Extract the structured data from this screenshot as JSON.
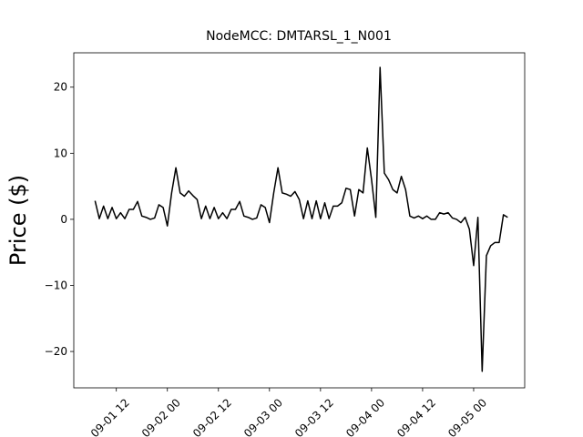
{
  "chart_data": {
    "type": "line",
    "title": "NodeMCC: DMTARSL_1_N001",
    "y_label": "Price ($)",
    "x": [
      "09-01 07",
      "09-01 08",
      "09-01 09",
      "09-01 10",
      "09-01 11",
      "09-01 12",
      "09-01 13",
      "09-01 14",
      "09-01 15",
      "09-01 16",
      "09-01 17",
      "09-01 18",
      "09-01 19",
      "09-01 20",
      "09-01 21",
      "09-01 22",
      "09-01 23",
      "09-02 00",
      "09-02 01",
      "09-02 02",
      "09-02 03",
      "09-02 04",
      "09-02 05",
      "09-02 06",
      "09-02 07",
      "09-02 08",
      "09-02 09",
      "09-02 10",
      "09-02 11",
      "09-02 12",
      "09-02 13",
      "09-02 14",
      "09-02 15",
      "09-02 16",
      "09-02 17",
      "09-02 18",
      "09-02 19",
      "09-02 20",
      "09-02 21",
      "09-02 22",
      "09-02 23",
      "09-03 00",
      "09-03 01",
      "09-03 02",
      "09-03 03",
      "09-03 04",
      "09-03 05",
      "09-03 06",
      "09-03 07",
      "09-03 08",
      "09-03 09",
      "09-03 10",
      "09-03 11",
      "09-03 12",
      "09-03 13",
      "09-03 14",
      "09-03 15",
      "09-03 16",
      "09-03 17",
      "09-03 18",
      "09-03 19",
      "09-03 20",
      "09-03 21",
      "09-03 22",
      "09-03 23",
      "09-04 00",
      "09-04 01",
      "09-04 02",
      "09-04 03",
      "09-04 04",
      "09-04 05",
      "09-04 06",
      "09-04 07",
      "09-04 08",
      "09-04 09",
      "09-04 10",
      "09-04 11",
      "09-04 12",
      "09-04 13",
      "09-04 14",
      "09-04 15",
      "09-04 16",
      "09-04 17",
      "09-04 18",
      "09-04 19",
      "09-04 20",
      "09-04 21",
      "09-04 22",
      "09-04 23",
      "09-05 00",
      "09-05 01",
      "09-05 02",
      "09-05 03",
      "09-05 04",
      "09-05 05",
      "09-05 06",
      "09-05 07",
      "09-05 08"
    ],
    "series": [
      {
        "color": "#000000",
        "values": [
          2.8,
          0.1,
          2.0,
          0.1,
          1.8,
          0.1,
          1.0,
          0.1,
          1.5,
          1.5,
          2.7,
          0.5,
          0.3,
          0,
          0.2,
          2.2,
          1.8,
          -1.0,
          4.0,
          7.8,
          4.0,
          3.5,
          4.3,
          3.6,
          3.0,
          0.1,
          2.0,
          0.1,
          1.8,
          0.1,
          1.0,
          0.1,
          1.5,
          1.5,
          2.7,
          0.5,
          0.3,
          0,
          0.2,
          2.2,
          1.8,
          -0.5,
          4.0,
          7.8,
          4.0,
          3.8,
          3.5,
          4.2,
          3.0,
          0.1,
          2.8,
          0.1,
          2.8,
          0.1,
          2.5,
          0.1,
          2.0,
          2.0,
          2.5,
          4.7,
          4.5,
          0.5,
          4.5,
          4.0,
          10.8,
          6.0,
          0.3,
          23.0,
          7.0,
          6.0,
          4.5,
          4.0,
          6.5,
          4.5,
          0.5,
          0.2,
          0.5,
          0.1,
          0.5,
          0,
          0,
          1.0,
          0.8,
          1.0,
          0.2,
          0,
          -0.5,
          0.3,
          -1.5,
          -7.0,
          0.3,
          -23.0,
          -5.5,
          -4.0,
          -3.5,
          -3.5,
          0.7,
          0.3
        ]
      }
    ],
    "xlim": [
      "09-01 02",
      "09-05 12"
    ],
    "xticks": [
      "09-01 12",
      "09-02 00",
      "09-02 12",
      "09-03 00",
      "09-03 12",
      "09-04 00",
      "09-04 12",
      "09-05 00"
    ],
    "ylim": [
      -25.5,
      25.2
    ],
    "yticks": [
      {
        "value": -20,
        "label": "−20"
      },
      {
        "value": -10,
        "label": "−10"
      },
      0,
      10,
      20
    ]
  }
}
